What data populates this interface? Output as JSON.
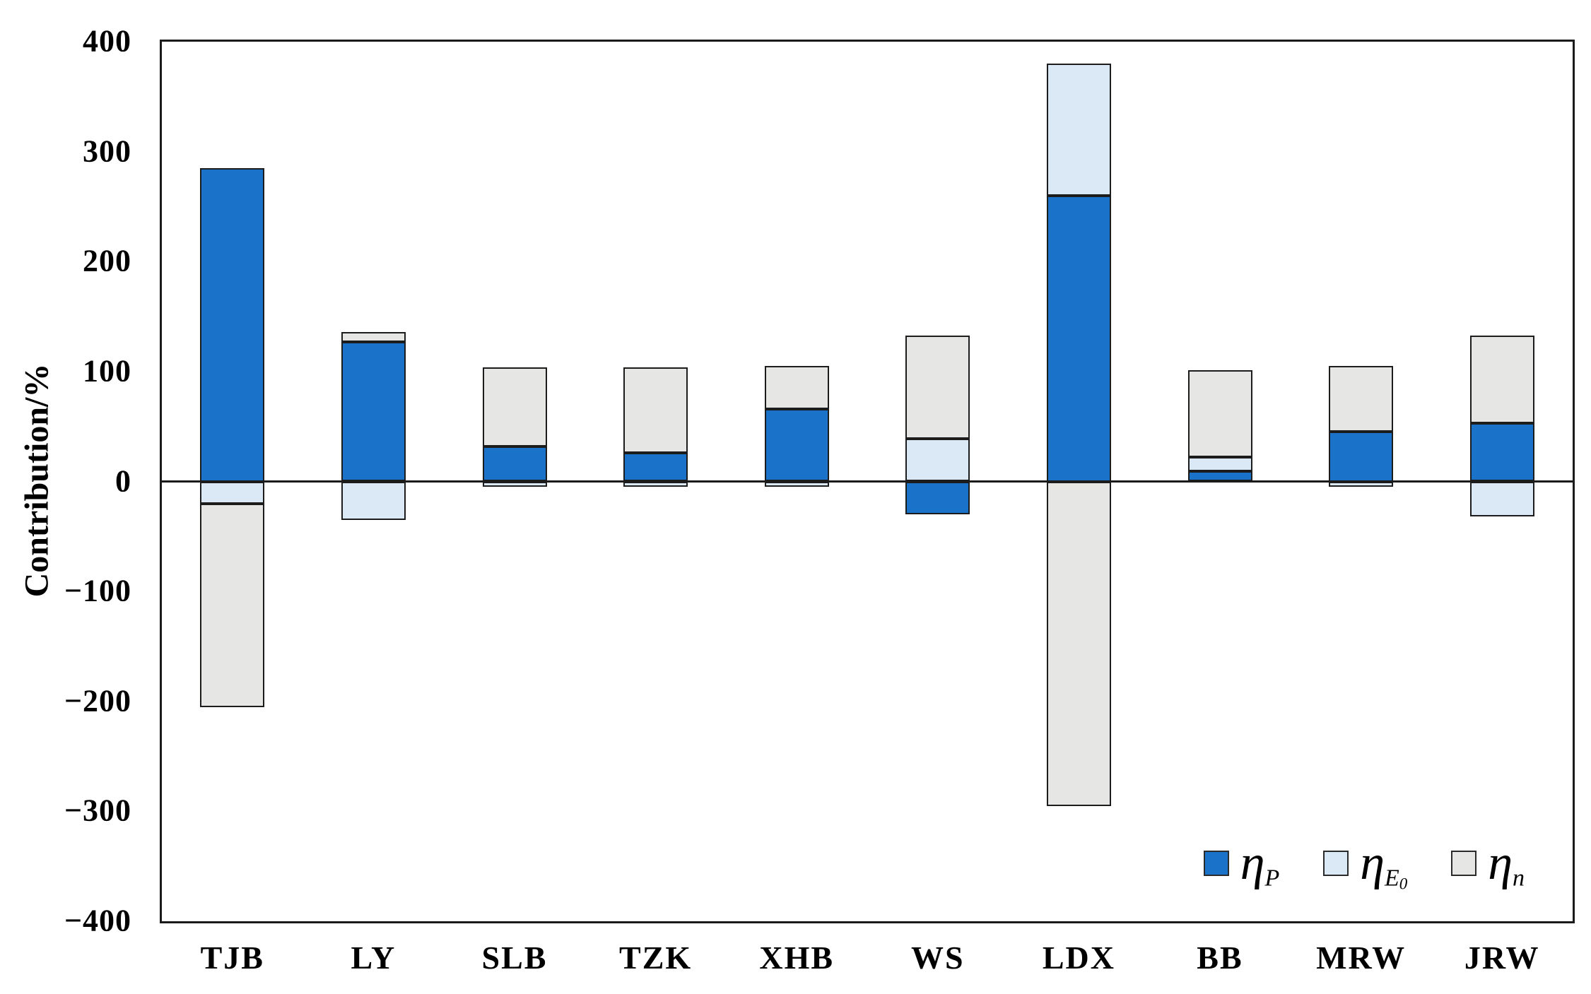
{
  "chart_data": {
    "type": "bar",
    "subtype": "stacked-bar-diverging",
    "title": "",
    "ylabel": "Contribution/%",
    "xlabel": "",
    "ylim": [
      -400,
      400
    ],
    "ytick_step": 100,
    "ytick_labels": [
      "400",
      "300",
      "200",
      "100",
      "0",
      "−100",
      "−200",
      "−300",
      "−400"
    ],
    "categories": [
      "TJB",
      "LY",
      "SLB",
      "TZK",
      "XHB",
      "WS",
      "LDX",
      "BB",
      "MRW",
      "JRW"
    ],
    "series": [
      {
        "name": "eta_P",
        "legend": {
          "symbol": "η",
          "sub": "P",
          "subsub": ""
        },
        "color": "#1A73C8",
        "values": [
          285,
          127,
          32,
          26,
          66,
          -30,
          260,
          9,
          45,
          53
        ]
      },
      {
        "name": "eta_E0",
        "legend": {
          "symbol": "η",
          "sub": "E",
          "subsub": "0"
        },
        "color": "#DAE9F5",
        "values": [
          -20,
          -35,
          -5,
          -5,
          -5,
          39,
          120,
          13,
          -5,
          -32
        ]
      },
      {
        "name": "eta_n",
        "legend": {
          "symbol": "η",
          "sub": "n",
          "subsub": ""
        },
        "color": "#E6E6E4",
        "values": [
          -185,
          9,
          72,
          78,
          39,
          94,
          -295,
          79,
          60,
          80
        ]
      }
    ],
    "grid": false,
    "zero_line": true,
    "bar_outline_color": "#1c1c1c",
    "legend_position": "inside-bottom-right",
    "axis_frame": true
  }
}
